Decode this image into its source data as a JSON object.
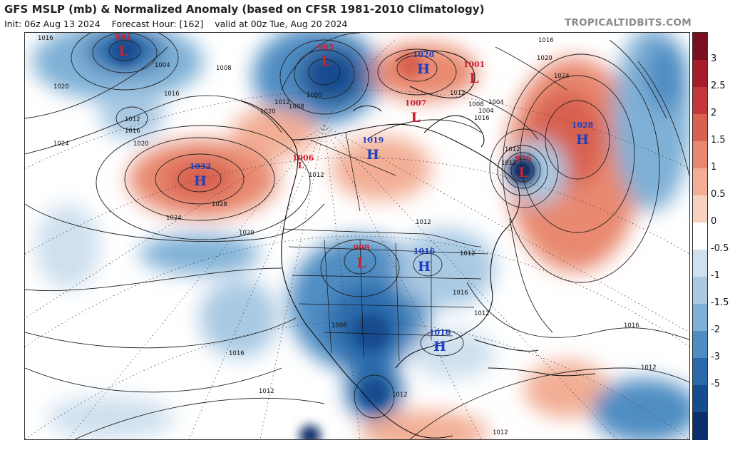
{
  "header": {
    "title": "GFS MSLP (mb) & Normalized Anomaly (based on CFSR 1981-2010 Climatology)",
    "init": "Init: 06z Aug 13 2024",
    "forecast_hour": "Forecast Hour: [162]",
    "valid": "valid at 00z Tue, Aug 20 2024",
    "brand": "TROPICALTIDBITS.COM"
  },
  "colorbar": {
    "ticks": [
      "3",
      "2.5",
      "2",
      "1.5",
      "1",
      "0.5",
      "0",
      "-0.5",
      "-1",
      "-1.5",
      "-2",
      "-3",
      "-5"
    ],
    "colors_top_to_bottom": [
      "#7a0f1f",
      "#a61c2a",
      "#c4383a",
      "#d8614f",
      "#e8896f",
      "#f2ae94",
      "#f8d1bf",
      "#ffffff",
      "#cfe0ee",
      "#a9c9e3",
      "#7fb0d6",
      "#4f8dc3",
      "#2a6aaa",
      "#154c8e",
      "#0b2f6a"
    ]
  },
  "pressure_centers": [
    {
      "type": "L",
      "value": "991",
      "color": "#cc1f2d"
    },
    {
      "type": "L",
      "value": "985",
      "color": "#cc1f2d"
    },
    {
      "type": "H",
      "value": "1028",
      "color": "#1d3fc2"
    },
    {
      "type": "L",
      "value": "1001",
      "color": "#cc1f2d"
    },
    {
      "type": "L",
      "value": "1007",
      "color": "#cc1f2d"
    },
    {
      "type": "H",
      "value": "1019",
      "color": "#1d3fc2"
    },
    {
      "type": "L",
      "value": "1006",
      "color": "#cc1f2d"
    },
    {
      "type": "H",
      "value": "1032",
      "color": "#1d3fc2"
    },
    {
      "type": "L",
      "value": "976",
      "color": "#cc1f2d"
    },
    {
      "type": "H",
      "value": "1028",
      "color": "#1d3fc2"
    },
    {
      "type": "L",
      "value": "999",
      "color": "#cc1f2d"
    },
    {
      "type": "H",
      "value": "1016",
      "color": "#1d3fc2"
    },
    {
      "type": "H",
      "value": "1016",
      "color": "#1d3fc2"
    }
  ],
  "isobar_labels": [
    "1016",
    "1020",
    "1024",
    "1004",
    "1008",
    "1012",
    "1016",
    "1020",
    "1016",
    "1000",
    "1012",
    "1020",
    "1008",
    "1012",
    "1016",
    "1008",
    "1004",
    "1004",
    "1012",
    "1024",
    "1028",
    "1020",
    "1024",
    "1012",
    "1012",
    "1012",
    "1020",
    "1016",
    "1012",
    "1008",
    "1016",
    "1012",
    "1016",
    "1012",
    "1012",
    "1016",
    "1012",
    "1012"
  ]
}
